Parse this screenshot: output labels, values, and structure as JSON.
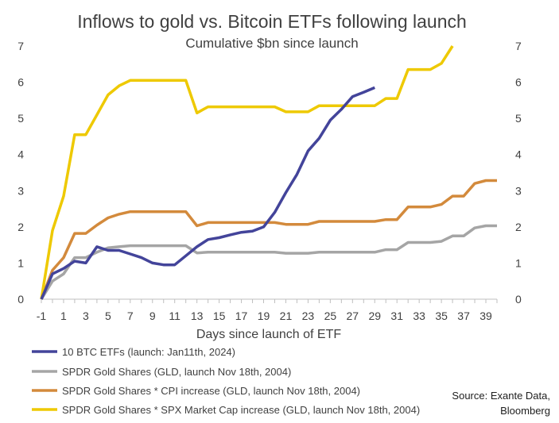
{
  "chart_data": {
    "type": "line",
    "title": "Inflows to gold vs. Bitcoin ETFs following launch",
    "subtitle": "Cumulative $bn since launch",
    "xlabel": "Days since launch of ETF",
    "ylabel": "",
    "xlim": [
      -1,
      40
    ],
    "ylim": [
      0,
      7
    ],
    "x_tick_labels": [
      "-1",
      "1",
      "3",
      "5",
      "7",
      "9",
      "11",
      "13",
      "15",
      "17",
      "19",
      "21",
      "23",
      "25",
      "27",
      "29",
      "31",
      "33",
      "35",
      "37",
      "39"
    ],
    "x_tick_values": [
      -1,
      1,
      3,
      5,
      7,
      9,
      11,
      13,
      15,
      17,
      19,
      21,
      23,
      25,
      27,
      29,
      31,
      33,
      35,
      37,
      39
    ],
    "y_ticks_left": [
      "0",
      "1",
      "2",
      "3",
      "4",
      "5",
      "6",
      "7"
    ],
    "y_ticks_right": [
      "0",
      "1",
      "2",
      "3",
      "4",
      "5",
      "6",
      "7"
    ],
    "grid": false,
    "legend_placement": "bottom-left",
    "source": [
      "Source: Exante Data,",
      "Bloomberg"
    ],
    "series": [
      {
        "name": "10 BTC ETFs (launch: Jan11th, 2024)",
        "color": "#43449a",
        "x": [
          -1,
          0,
          1,
          2,
          3,
          4,
          5,
          6,
          7,
          8,
          9,
          10,
          11,
          12,
          13,
          14,
          15,
          16,
          17,
          18,
          19,
          20,
          21,
          22,
          23,
          24,
          25,
          26,
          27,
          28,
          29
        ],
        "y": [
          0,
          0.7,
          0.85,
          1.05,
          1.0,
          1.45,
          1.35,
          1.35,
          1.25,
          1.15,
          1.0,
          0.95,
          0.95,
          1.2,
          1.45,
          1.65,
          1.7,
          1.78,
          1.85,
          1.88,
          2.0,
          2.4,
          2.95,
          3.45,
          4.1,
          4.45,
          4.95,
          5.25,
          5.6,
          5.72,
          5.85
        ]
      },
      {
        "name": "SPDR Gold Shares (GLD, launch Nov 18th, 2004)",
        "color": "#a5a5a5",
        "x": [
          -1,
          0,
          1,
          2,
          3,
          4,
          5,
          6,
          7,
          8,
          9,
          10,
          11,
          12,
          13,
          14,
          15,
          16,
          17,
          18,
          19,
          20,
          21,
          22,
          23,
          24,
          25,
          26,
          27,
          28,
          29,
          30,
          31,
          32,
          33,
          34,
          35,
          36,
          37,
          38,
          39,
          40
        ],
        "y": [
          0,
          0.5,
          0.7,
          1.15,
          1.15,
          1.3,
          1.42,
          1.45,
          1.48,
          1.48,
          1.48,
          1.48,
          1.48,
          1.48,
          1.28,
          1.3,
          1.3,
          1.3,
          1.3,
          1.3,
          1.3,
          1.3,
          1.27,
          1.27,
          1.27,
          1.3,
          1.3,
          1.3,
          1.3,
          1.3,
          1.3,
          1.37,
          1.37,
          1.57,
          1.57,
          1.57,
          1.6,
          1.75,
          1.75,
          1.97,
          2.03,
          2.03
        ]
      },
      {
        "name": "SPDR Gold Shares * CPI increase (GLD, launch Nov 18th, 2004)",
        "color": "#d38a3c",
        "x": [
          -1,
          0,
          1,
          2,
          3,
          4,
          5,
          6,
          7,
          8,
          9,
          10,
          11,
          12,
          13,
          14,
          15,
          16,
          17,
          18,
          19,
          20,
          21,
          22,
          23,
          24,
          25,
          26,
          27,
          28,
          29,
          30,
          31,
          32,
          33,
          34,
          35,
          36,
          37,
          38,
          39,
          40
        ],
        "y": [
          0,
          0.8,
          1.15,
          1.82,
          1.82,
          2.05,
          2.25,
          2.35,
          2.42,
          2.42,
          2.42,
          2.42,
          2.42,
          2.42,
          2.03,
          2.12,
          2.12,
          2.12,
          2.12,
          2.12,
          2.12,
          2.12,
          2.07,
          2.07,
          2.07,
          2.15,
          2.15,
          2.15,
          2.15,
          2.15,
          2.15,
          2.2,
          2.2,
          2.55,
          2.55,
          2.55,
          2.62,
          2.85,
          2.85,
          3.2,
          3.28,
          3.28
        ]
      },
      {
        "name": "SPDR Gold Shares * SPX Market Cap increase (GLD, launch Nov 18th, 2004)",
        "color": "#eec900",
        "x": [
          -1,
          0,
          1,
          2,
          3,
          4,
          5,
          6,
          7,
          8,
          9,
          10,
          11,
          12,
          13,
          14,
          15,
          16,
          17,
          18,
          19,
          20,
          21,
          22,
          23,
          24,
          25,
          26,
          27,
          28,
          29,
          30,
          31,
          32,
          33,
          34,
          35,
          36
        ],
        "y": [
          0,
          1.9,
          2.85,
          4.55,
          4.55,
          5.1,
          5.65,
          5.9,
          6.05,
          6.05,
          6.05,
          6.05,
          6.05,
          6.05,
          5.15,
          5.32,
          5.32,
          5.32,
          5.32,
          5.32,
          5.32,
          5.32,
          5.18,
          5.18,
          5.18,
          5.35,
          5.35,
          5.35,
          5.35,
          5.35,
          5.35,
          5.55,
          5.55,
          6.35,
          6.35,
          6.35,
          6.52,
          7.0
        ]
      }
    ]
  }
}
